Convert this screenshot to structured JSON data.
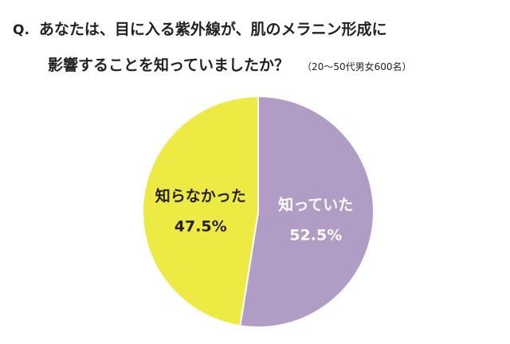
{
  "question": {
    "prefix": "Q.",
    "line1": "あなたは、目に入る紫外線が、肌のメラニン形成に",
    "line2": "影響することを知っていましたか？",
    "note": "（20～50代男女600名）"
  },
  "colors": {
    "known": "#b09cc4",
    "not_known": "#eeea44",
    "border": "#ffffff",
    "label_dark": "#222222",
    "label_light": "#ffffff"
  },
  "chart_data": {
    "type": "pie",
    "title": "あなたは、目に入る紫外線が、肌のメラニン形成に影響することを知っていましたか？",
    "note": "（20～50代男女600名）",
    "start": "12 o'clock",
    "direction": "clockwise",
    "slices": [
      {
        "label": "知っていた",
        "value": 52.5,
        "value_label": "52.5%",
        "color": "#b09cc4",
        "text_color": "#ffffff"
      },
      {
        "label": "知らなかった",
        "value": 47.5,
        "value_label": "47.5%",
        "color": "#eeea44",
        "text_color": "#222222"
      }
    ]
  }
}
